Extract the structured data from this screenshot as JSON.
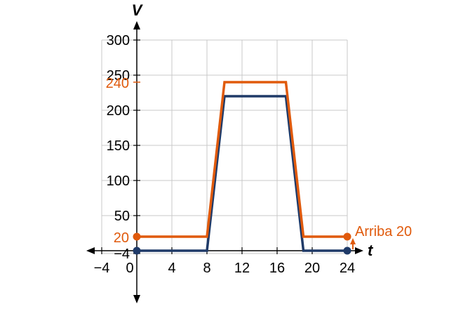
{
  "chart_data": {
    "type": "line",
    "xlabel": "t",
    "ylabel": "V",
    "xlim": [
      -4,
      24
    ],
    "ylim": [
      -4,
      300
    ],
    "grid": true,
    "x_ticks": [
      {
        "value": -4,
        "label": "−4"
      },
      {
        "value": 0,
        "label": "0"
      },
      {
        "value": 4,
        "label": "4"
      },
      {
        "value": 8,
        "label": "8"
      },
      {
        "value": 12,
        "label": "12"
      },
      {
        "value": 16,
        "label": "16"
      },
      {
        "value": 20,
        "label": "20"
      },
      {
        "value": 24,
        "label": "24"
      }
    ],
    "y_ticks": [
      {
        "value": -4,
        "label": "−4"
      },
      {
        "value": 50,
        "label": "50"
      },
      {
        "value": 100,
        "label": "100"
      },
      {
        "value": 150,
        "label": "150"
      },
      {
        "value": 200,
        "label": "200"
      },
      {
        "value": 250,
        "label": "250"
      },
      {
        "value": 300,
        "label": "300"
      }
    ],
    "series": [
      {
        "color": "#1f3a68",
        "points": [
          [
            0,
            0
          ],
          [
            8,
            0
          ],
          [
            10,
            220
          ],
          [
            17,
            220
          ],
          [
            19,
            0
          ],
          [
            24,
            0
          ]
        ],
        "endpoints": [
          [
            0,
            0
          ],
          [
            24,
            0
          ]
        ]
      },
      {
        "color": "#e05a0c",
        "points": [
          [
            0,
            20
          ],
          [
            8,
            20
          ],
          [
            10,
            240
          ],
          [
            17,
            240
          ],
          [
            19,
            20
          ],
          [
            24,
            20
          ]
        ],
        "endpoints": [
          [
            0,
            20
          ],
          [
            24,
            20
          ]
        ]
      }
    ],
    "annotations": {
      "y240": {
        "value": 240,
        "label": "240",
        "color": "#e05a0c"
      },
      "y20": {
        "value": 20,
        "label": "20",
        "color": "#e05a0c"
      },
      "shift": {
        "label": "Arriba 20",
        "color": "#e05a0c"
      }
    }
  }
}
